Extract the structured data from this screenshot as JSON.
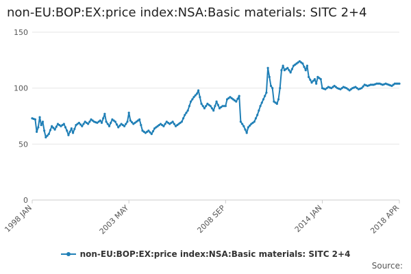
{
  "chart_data": {
    "type": "line",
    "title": "non-EU:BOP:EX:price index:NSA:Basic materials: SITC 2+4",
    "xlabel": "",
    "ylabel": "",
    "ylim": [
      0,
      150
    ],
    "yticks": [
      0,
      50,
      100,
      150
    ],
    "xticks": [
      {
        "label": "1998 JAN",
        "index": 0
      },
      {
        "label": "2003 MAY",
        "index": 64
      },
      {
        "label": "2008 SEP",
        "index": 128
      },
      {
        "label": "2014 JAN",
        "index": 192
      },
      {
        "label": "2018 APR",
        "index": 243
      }
    ],
    "x_start": "1998 JAN",
    "x_end": "2018 APR",
    "color": "#1f7fb6",
    "series": [
      {
        "name": "non-EU:BOP:EX:price index:NSA:Basic materials: SITC 2+4",
        "knots": [
          [
            0,
            73
          ],
          [
            2,
            72
          ],
          [
            3,
            61
          ],
          [
            4,
            65
          ],
          [
            5,
            74
          ],
          [
            6,
            67
          ],
          [
            7,
            70
          ],
          [
            8,
            62
          ],
          [
            9,
            56
          ],
          [
            11,
            59
          ],
          [
            13,
            66
          ],
          [
            15,
            63
          ],
          [
            17,
            68
          ],
          [
            19,
            66
          ],
          [
            21,
            68
          ],
          [
            23,
            62
          ],
          [
            24,
            58
          ],
          [
            26,
            64
          ],
          [
            27,
            60
          ],
          [
            29,
            67
          ],
          [
            31,
            69
          ],
          [
            33,
            66
          ],
          [
            35,
            70
          ],
          [
            37,
            68
          ],
          [
            39,
            72
          ],
          [
            41,
            70
          ],
          [
            43,
            69
          ],
          [
            45,
            71
          ],
          [
            46,
            69
          ],
          [
            48,
            77
          ],
          [
            49,
            70
          ],
          [
            51,
            66
          ],
          [
            53,
            72
          ],
          [
            55,
            70
          ],
          [
            57,
            65
          ],
          [
            59,
            68
          ],
          [
            61,
            66
          ],
          [
            63,
            70
          ],
          [
            64,
            78
          ],
          [
            65,
            71
          ],
          [
            67,
            68
          ],
          [
            69,
            70
          ],
          [
            71,
            72
          ],
          [
            73,
            62
          ],
          [
            75,
            60
          ],
          [
            77,
            62
          ],
          [
            79,
            59
          ],
          [
            81,
            64
          ],
          [
            83,
            66
          ],
          [
            85,
            68
          ],
          [
            87,
            66
          ],
          [
            89,
            70
          ],
          [
            91,
            68
          ],
          [
            93,
            70
          ],
          [
            95,
            66
          ],
          [
            97,
            68
          ],
          [
            99,
            70
          ],
          [
            101,
            76
          ],
          [
            103,
            80
          ],
          [
            105,
            88
          ],
          [
            107,
            92
          ],
          [
            109,
            95
          ],
          [
            110,
            98
          ],
          [
            112,
            86
          ],
          [
            114,
            82
          ],
          [
            116,
            86
          ],
          [
            118,
            84
          ],
          [
            120,
            80
          ],
          [
            122,
            88
          ],
          [
            124,
            82
          ],
          [
            126,
            84
          ],
          [
            128,
            84
          ],
          [
            129,
            90
          ],
          [
            131,
            92
          ],
          [
            133,
            90
          ],
          [
            135,
            88
          ],
          [
            137,
            93
          ],
          [
            138,
            70
          ],
          [
            140,
            66
          ],
          [
            141,
            63
          ],
          [
            142,
            60
          ],
          [
            143,
            65
          ],
          [
            145,
            68
          ],
          [
            147,
            70
          ],
          [
            149,
            76
          ],
          [
            151,
            84
          ],
          [
            153,
            90
          ],
          [
            155,
            96
          ],
          [
            156,
            118
          ],
          [
            157,
            110
          ],
          [
            158,
            102
          ],
          [
            159,
            100
          ],
          [
            160,
            88
          ],
          [
            162,
            86
          ],
          [
            163,
            90
          ],
          [
            164,
            100
          ],
          [
            165,
            116
          ],
          [
            166,
            120
          ],
          [
            167,
            116
          ],
          [
            169,
            118
          ],
          [
            171,
            114
          ],
          [
            173,
            120
          ],
          [
            175,
            122
          ],
          [
            177,
            124
          ],
          [
            179,
            122
          ],
          [
            181,
            116
          ],
          [
            182,
            120
          ],
          [
            183,
            110
          ],
          [
            185,
            105
          ],
          [
            187,
            108
          ],
          [
            188,
            104
          ],
          [
            189,
            110
          ],
          [
            191,
            108
          ],
          [
            192,
            100
          ],
          [
            194,
            99
          ],
          [
            196,
            101
          ],
          [
            198,
            100
          ],
          [
            200,
            102
          ],
          [
            202,
            100
          ],
          [
            204,
            99
          ],
          [
            206,
            101
          ],
          [
            208,
            100
          ],
          [
            210,
            98
          ],
          [
            212,
            100
          ],
          [
            214,
            101
          ],
          [
            216,
            99
          ],
          [
            218,
            100
          ],
          [
            220,
            103
          ],
          [
            222,
            102
          ],
          [
            224,
            103
          ],
          [
            226,
            103
          ],
          [
            228,
            104
          ],
          [
            230,
            104
          ],
          [
            232,
            103
          ],
          [
            234,
            104
          ],
          [
            236,
            103
          ],
          [
            238,
            102
          ],
          [
            240,
            104
          ],
          [
            243,
            104
          ]
        ]
      }
    ],
    "legend": "bottom-center"
  },
  "source_label": "Source:"
}
